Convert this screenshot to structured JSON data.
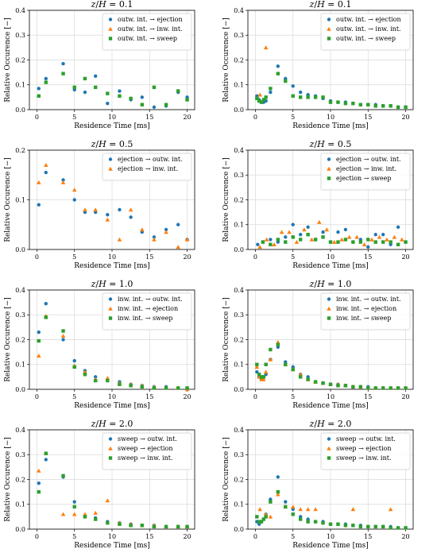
{
  "figure": {
    "xlabel": "Residence Time [ms]",
    "ylabel": "Relative Occurence [−]",
    "x_ticks": [
      0,
      5,
      10,
      15,
      20
    ],
    "y_ticks": [
      0.0,
      0.1,
      0.2,
      0.3,
      0.4
    ],
    "y_tick_labels": [
      "0.0",
      "0.1",
      "0.2",
      "0.3",
      "0.4"
    ],
    "series_colors": [
      "#1f77b4",
      "#ff7f0e",
      "#2ca02c"
    ],
    "series_markers": [
      "circle",
      "triangle",
      "square"
    ]
  },
  "chart_data": [
    {
      "type": "scatter",
      "title": "z/H = 0.1",
      "xlabel": "Residence Time [ms]",
      "ylabel": "Relative Occurence [−]",
      "xlim": [
        -1,
        21
      ],
      "ylim": [
        0,
        0.4
      ],
      "grid": true,
      "legend": "top-right",
      "series": [
        {
          "name": "outw. int. → ejection",
          "x": [
            0.25,
            1.2,
            3.5,
            5.0,
            6.4,
            7.8,
            9.4,
            11.0,
            12.5,
            14.0,
            15.6,
            17.2,
            18.8,
            20.0
          ],
          "y": [
            0.085,
            0.125,
            0.185,
            0.08,
            0.07,
            0.135,
            0.025,
            0.075,
            0.04,
            0.05,
            0.01,
            0.015,
            0.07,
            0.05
          ]
        },
        {
          "name": "outw. int. → inw. int.",
          "x": [],
          "y": []
        },
        {
          "name": "outw. int. → sweep",
          "x": [
            0.25,
            1.2,
            3.5,
            5.0,
            6.4,
            7.8,
            9.4,
            11.0,
            12.5,
            14.0,
            15.6,
            17.2,
            18.8,
            20.0
          ],
          "y": [
            0.055,
            0.11,
            0.145,
            0.09,
            0.125,
            0.09,
            0.065,
            0.055,
            0.045,
            0.02,
            0.09,
            0.02,
            0.075,
            0.04
          ]
        }
      ]
    },
    {
      "type": "scatter",
      "title": "z/H = 0.1",
      "xlabel": "Residence Time [ms]",
      "ylabel": "Relative Occurence [−]",
      "xlim": [
        -1,
        21
      ],
      "ylim": [
        0,
        0.4
      ],
      "grid": true,
      "legend": "top-right",
      "series": [
        {
          "name": "outw. int. → ejection",
          "x": [
            0.2,
            0.5,
            0.8,
            1.1,
            1.4,
            2.0,
            3.0,
            4.0,
            5.0,
            6.0,
            7.0,
            8.0,
            9.0,
            10.0,
            11.0,
            12.0,
            13.0,
            14.0,
            15.0,
            16.0,
            17.0,
            18.0,
            19.0,
            20.0
          ],
          "y": [
            0.055,
            0.04,
            0.03,
            0.03,
            0.035,
            0.07,
            0.175,
            0.125,
            0.095,
            0.07,
            0.06,
            0.055,
            0.045,
            0.035,
            0.03,
            0.03,
            0.025,
            0.02,
            0.02,
            0.02,
            0.015,
            0.015,
            0.01,
            0.01
          ]
        },
        {
          "name": "outw. int. → inw. int.",
          "x": [
            0.6,
            1.4
          ],
          "y": [
            0.06,
            0.25
          ]
        },
        {
          "name": "outw. int. → sweep",
          "x": [
            0.2,
            0.5,
            0.8,
            1.1,
            1.4,
            2.0,
            3.0,
            4.0,
            5.0,
            6.0,
            7.0,
            8.0,
            9.0,
            10.0,
            11.0,
            12.0,
            13.0,
            14.0,
            15.0,
            16.0,
            17.0,
            18.0,
            19.0,
            20.0
          ],
          "y": [
            0.045,
            0.035,
            0.03,
            0.04,
            0.05,
            0.085,
            0.145,
            0.115,
            0.055,
            0.05,
            0.05,
            0.05,
            0.05,
            0.03,
            0.03,
            0.025,
            0.025,
            0.02,
            0.02,
            0.015,
            0.015,
            0.015,
            0.01,
            0.01
          ]
        }
      ]
    },
    {
      "type": "scatter",
      "title": "z/H = 0.5",
      "xlabel": "Residence Time [ms]",
      "ylabel": "Relative Occurence [−]",
      "xlim": [
        -1,
        21
      ],
      "ylim": [
        0,
        0.2
      ],
      "grid": true,
      "legend": "top-right",
      "series": [
        {
          "name": "ejection → outw. int.",
          "x": [
            0.25,
            1.2,
            3.5,
            5.0,
            6.4,
            7.8,
            9.4,
            11.0,
            12.5,
            14.0,
            15.6,
            17.2,
            18.8,
            20.0
          ],
          "y": [
            0.09,
            0.155,
            0.14,
            0.1,
            0.075,
            0.075,
            0.07,
            0.08,
            0.065,
            0.035,
            0.025,
            0.04,
            0.05,
            0.02
          ]
        },
        {
          "name": "ejection → inw. int.",
          "x": [
            0.25,
            1.2,
            3.5,
            5.0,
            6.4,
            7.8,
            9.4,
            11.0,
            12.5,
            14.0,
            15.6,
            17.2,
            18.8,
            20.0
          ],
          "y": [
            0.135,
            0.17,
            0.135,
            0.12,
            0.08,
            0.08,
            0.06,
            0.02,
            0.08,
            0.04,
            0.02,
            0.035,
            0.005,
            0.02
          ]
        }
      ]
    },
    {
      "type": "scatter",
      "title": "z/H = 0.5",
      "xlabel": "Residence Time [ms]",
      "ylabel": "Relative Occurence [−]",
      "xlim": [
        -1,
        21
      ],
      "ylim": [
        0,
        0.4
      ],
      "grid": true,
      "legend": "top-right",
      "series": [
        {
          "name": "ejection → outw. int.",
          "x": [
            0.3,
            1.0,
            2.0,
            3.0,
            4.0,
            5.0,
            6.0,
            7.0,
            8.0,
            9.0,
            10.0,
            11.0,
            12.0,
            13.0,
            14.0,
            15.0,
            16.0,
            17.0,
            18.0,
            19.0,
            20.0
          ],
          "y": [
            0.02,
            0.03,
            0.04,
            0.03,
            0.05,
            0.1,
            0.06,
            0.09,
            0.04,
            0.07,
            0.03,
            0.07,
            0.08,
            0.03,
            0.04,
            0.01,
            0.06,
            0.06,
            0.02,
            0.09,
            0.03
          ]
        },
        {
          "name": "ejection → inw. int.",
          "x": [
            0.6,
            1.5,
            2.5,
            3.5,
            4.5,
            5.5,
            6.5,
            7.5,
            8.5,
            9.5,
            10.5,
            11.5,
            12.5,
            13.5,
            14.5,
            15.5,
            16.5,
            17.5,
            18.5,
            19.5
          ],
          "y": [
            0.01,
            0.04,
            0.02,
            0.07,
            0.07,
            0.03,
            0.08,
            0.04,
            0.11,
            0.08,
            0.03,
            0.04,
            0.05,
            0.05,
            0.02,
            0.04,
            0.05,
            0.04,
            0.05,
            0.04
          ]
        },
        {
          "name": "ejection → sweep",
          "x": [
            1.0,
            2.0,
            3.0,
            4.0,
            5.0,
            6.0,
            7.0,
            8.0,
            9.0,
            10.0,
            11.0,
            12.0,
            13.0,
            14.0,
            15.0,
            16.0,
            17.0,
            18.0,
            19.0,
            20.0
          ],
          "y": [
            0.03,
            0.02,
            0.04,
            0.03,
            0.05,
            0.04,
            0.06,
            0.04,
            0.05,
            0.03,
            0.03,
            0.04,
            0.03,
            0.03,
            0.04,
            0.03,
            0.03,
            0.03,
            0.02,
            0.03
          ]
        }
      ]
    },
    {
      "type": "scatter",
      "title": "z/H = 1.0",
      "xlabel": "Residence Time [ms]",
      "ylabel": "Relative Occurence [−]",
      "xlim": [
        -1,
        21
      ],
      "ylim": [
        0,
        0.4
      ],
      "grid": true,
      "legend": "top-right",
      "series": [
        {
          "name": "inw. int. → outw. int.",
          "x": [
            0.25,
            1.2,
            3.5,
            5.0,
            6.4,
            7.8,
            9.4,
            11.0,
            12.5,
            14.0,
            15.6,
            17.2,
            18.8,
            20.0
          ],
          "y": [
            0.23,
            0.345,
            0.2,
            0.115,
            0.075,
            0.05,
            0.04,
            0.03,
            0.02,
            0.015,
            0.01,
            0.01,
            0.005,
            0.005
          ]
        },
        {
          "name": "inw. int. → ejection",
          "x": [
            0.25,
            1.2,
            3.5,
            5.0,
            6.4,
            7.8,
            9.4,
            11.0,
            12.5,
            14.0,
            15.6,
            17.2,
            18.8,
            20.0
          ],
          "y": [
            0.135,
            0.295,
            0.215,
            0.095,
            0.07,
            0.04,
            0.045,
            0.025,
            0.02,
            0.015,
            0.01,
            0.005,
            0.005,
            0.0
          ]
        },
        {
          "name": "inw. int. → sweep",
          "x": [
            0.25,
            1.2,
            3.5,
            5.0,
            6.4,
            7.8,
            9.4,
            11.0,
            12.5,
            14.0,
            15.6,
            17.2,
            18.8,
            20.0
          ],
          "y": [
            0.195,
            0.29,
            0.235,
            0.09,
            0.06,
            0.035,
            0.035,
            0.02,
            0.015,
            0.01,
            0.005,
            0.005,
            0.005,
            0.005
          ]
        }
      ]
    },
    {
      "type": "scatter",
      "title": "z/H = 1.0",
      "xlabel": "Residence Time [ms]",
      "ylabel": "Relative Occurence [−]",
      "xlim": [
        -1,
        21
      ],
      "ylim": [
        0,
        0.4
      ],
      "grid": true,
      "legend": "top-right",
      "series": [
        {
          "name": "inw. int. → outw. int.",
          "x": [
            0.2,
            0.5,
            0.8,
            1.1,
            1.4,
            2.0,
            3.0,
            4.0,
            5.0,
            6.0,
            7.0,
            8.0,
            9.0,
            10.0,
            11.0,
            12.0,
            13.0,
            14.0,
            15.0,
            16.0,
            17.0,
            18.0,
            19.0,
            20.0
          ],
          "y": [
            0.07,
            0.05,
            0.04,
            0.05,
            0.06,
            0.12,
            0.17,
            0.11,
            0.09,
            0.06,
            0.05,
            0.03,
            0.025,
            0.02,
            0.02,
            0.015,
            0.01,
            0.01,
            0.01,
            0.005,
            0.005,
            0.005,
            0.005,
            0.005
          ]
        },
        {
          "name": "inw. int. → ejection",
          "x": [
            0.2,
            0.5,
            0.8,
            1.1,
            1.4,
            2.0,
            3.0,
            4.0,
            5.0,
            6.0,
            7.0,
            8.0,
            9.0,
            10.0,
            11.0,
            12.0,
            13.0,
            14.0,
            15.0,
            16.0,
            17.0,
            18.0,
            19.0,
            20.0
          ],
          "y": [
            0.09,
            0.05,
            0.04,
            0.04,
            0.07,
            0.12,
            0.19,
            0.1,
            0.08,
            0.06,
            0.04,
            0.03,
            0.025,
            0.02,
            0.02,
            0.015,
            0.01,
            0.01,
            0.005,
            0.005,
            0.005,
            0.005,
            0.005,
            0.005
          ]
        },
        {
          "name": "inw. int. → sweep",
          "x": [
            0.2,
            0.5,
            0.8,
            1.1,
            1.4,
            2.0,
            3.0,
            4.0,
            5.0,
            6.0,
            7.0,
            8.0,
            9.0,
            10.0,
            11.0,
            12.0,
            13.0,
            14.0,
            15.0,
            16.0,
            17.0,
            18.0,
            19.0,
            20.0
          ],
          "y": [
            0.1,
            0.06,
            0.05,
            0.05,
            0.1,
            0.16,
            0.18,
            0.1,
            0.08,
            0.05,
            0.04,
            0.03,
            0.025,
            0.02,
            0.015,
            0.015,
            0.01,
            0.01,
            0.005,
            0.005,
            0.005,
            0.005,
            0.005,
            0.005
          ]
        }
      ]
    },
    {
      "type": "scatter",
      "title": "z/H = 2.0",
      "xlabel": "Residence Time [ms]",
      "ylabel": "Relative Occurence [−]",
      "xlim": [
        -1,
        21
      ],
      "ylim": [
        0,
        0.4
      ],
      "grid": true,
      "legend": "top-right",
      "series": [
        {
          "name": "sweep → outw. int.",
          "x": [
            0.25,
            1.2,
            3.5,
            5.0,
            6.4,
            7.8,
            9.4,
            11.0,
            12.5,
            14.0,
            15.6,
            17.2,
            18.8,
            20.0
          ],
          "y": [
            0.185,
            0.28,
            0.21,
            0.11,
            0.05,
            0.045,
            0.03,
            0.025,
            0.02,
            0.015,
            0.015,
            0.01,
            0.01,
            0.01
          ]
        },
        {
          "name": "sweep → ejection",
          "x": [
            0.25,
            1.2,
            3.5,
            5.0,
            6.4,
            7.8,
            9.4,
            11.0,
            12.5,
            14.0,
            15.6,
            17.2,
            18.8,
            20.0
          ],
          "y": [
            0.235,
            0.305,
            0.06,
            0.06,
            0.06,
            0.065,
            0.115,
            0.025,
            0.02,
            0.015,
            0.015,
            0.01,
            0.01,
            0.01
          ]
        },
        {
          "name": "sweep → inw. int.",
          "x": [
            0.25,
            1.2,
            3.5,
            5.0,
            6.4,
            7.8,
            9.4,
            11.0,
            12.5,
            14.0,
            15.6,
            17.2,
            18.8,
            20.0
          ],
          "y": [
            0.15,
            0.305,
            0.215,
            0.09,
            0.05,
            0.04,
            0.025,
            0.02,
            0.015,
            0.015,
            0.01,
            0.01,
            0.01,
            0.01
          ]
        }
      ]
    },
    {
      "type": "scatter",
      "title": "z/H = 2.0",
      "xlabel": "Residence Time [ms]",
      "ylabel": "Relative Occurence [−]",
      "xlim": [
        -1,
        21
      ],
      "ylim": [
        0,
        0.4
      ],
      "grid": true,
      "legend": "top-right",
      "series": [
        {
          "name": "sweep → outw. int.",
          "x": [
            0.2,
            0.5,
            0.8,
            1.1,
            1.4,
            2.0,
            3.0,
            4.0,
            5.0,
            6.0,
            7.0,
            8.0,
            9.0,
            10.0,
            11.0,
            12.0,
            13.0,
            14.0,
            15.0,
            16.0,
            17.0,
            18.0,
            19.0,
            20.0
          ],
          "y": [
            0.03,
            0.02,
            0.03,
            0.04,
            0.06,
            0.12,
            0.21,
            0.11,
            0.08,
            0.05,
            0.04,
            0.03,
            0.03,
            0.02,
            0.02,
            0.02,
            0.015,
            0.015,
            0.01,
            0.01,
            0.01,
            0.01,
            0.005,
            0.005
          ]
        },
        {
          "name": "sweep → ejection",
          "x": [
            0.6,
            1.4,
            2.0,
            3.0,
            4.0,
            5.0,
            6.0,
            7.0,
            8.0,
            13.0,
            18.0
          ],
          "y": [
            0.08,
            0.06,
            0.05,
            0.14,
            0.09,
            0.09,
            0.08,
            0.08,
            0.08,
            0.08,
            0.08
          ]
        },
        {
          "name": "sweep → inw. int.",
          "x": [
            0.2,
            0.5,
            0.8,
            1.1,
            1.4,
            2.0,
            3.0,
            4.0,
            5.0,
            6.0,
            7.0,
            8.0,
            9.0,
            10.0,
            11.0,
            12.0,
            13.0,
            14.0,
            15.0,
            16.0,
            17.0,
            18.0,
            19.0,
            20.0
          ],
          "y": [
            0.05,
            0.03,
            0.03,
            0.04,
            0.05,
            0.11,
            0.15,
            0.09,
            0.06,
            0.04,
            0.03,
            0.03,
            0.025,
            0.02,
            0.02,
            0.015,
            0.015,
            0.01,
            0.01,
            0.01,
            0.01,
            0.005,
            0.005,
            0.005
          ]
        }
      ]
    }
  ]
}
